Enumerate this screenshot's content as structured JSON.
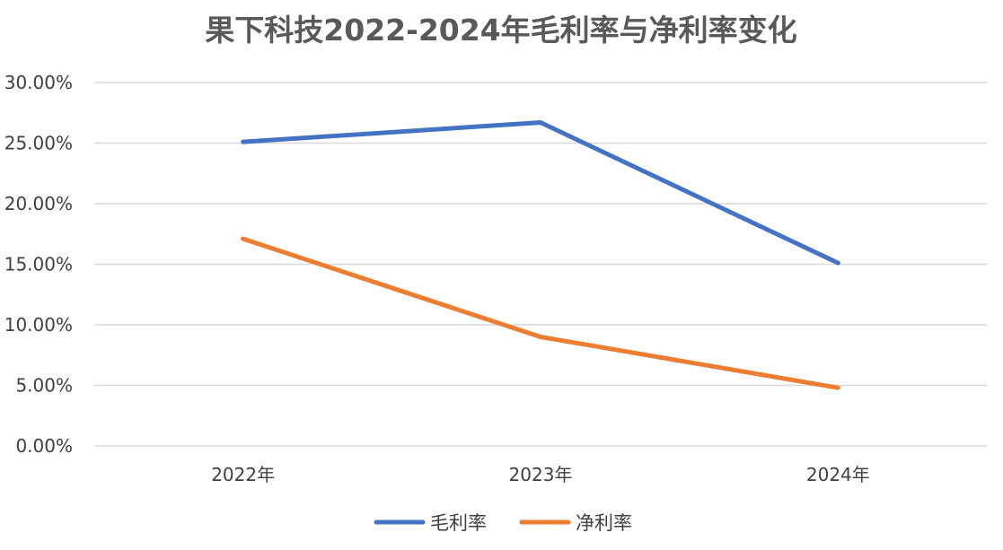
{
  "chart_data": {
    "type": "line",
    "title": "果下科技2022-2024年毛利率与净利率变化",
    "xlabel": "",
    "ylabel": "",
    "categories": [
      "2022年",
      "2023年",
      "2024年"
    ],
    "ylim": [
      0,
      30
    ],
    "yticks": [
      0,
      5,
      10,
      15,
      20,
      25,
      30
    ],
    "ytick_labels": [
      "0.00%",
      "5.00%",
      "10.00%",
      "15.00%",
      "20.00%",
      "25.00%",
      "30.00%"
    ],
    "grid": true,
    "legend_position": "bottom",
    "series": [
      {
        "name": "毛利率",
        "values": [
          25.1,
          26.7,
          15.1
        ],
        "color": "#4472c4"
      },
      {
        "name": "净利率",
        "values": [
          17.1,
          9.0,
          4.8
        ],
        "color": "#ed7d31"
      }
    ]
  }
}
